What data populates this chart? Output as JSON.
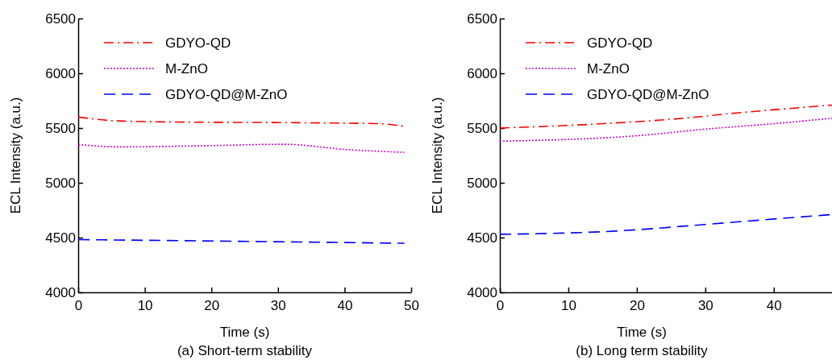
{
  "chart_data": [
    {
      "type": "line",
      "title": "(a) Short-term stability",
      "xlabel": "Time (s)",
      "ylabel": "ECL Intensity (a.u.)",
      "xlim": [
        0,
        50
      ],
      "xticks": [
        0,
        10,
        20,
        30,
        40,
        50
      ],
      "ylim": [
        4000,
        6500
      ],
      "yticks": [
        4000,
        4500,
        5000,
        5500,
        6000,
        6500
      ],
      "legend": "top left",
      "grid": false,
      "series": [
        {
          "name": "GDYO-QD",
          "color": "#ff0000",
          "line_style": "dashdot",
          "x": [
            0,
            6,
            15,
            30,
            45,
            49
          ],
          "values": [
            5600,
            5565,
            5555,
            5550,
            5540,
            5515
          ]
        },
        {
          "name": "M-ZnO",
          "color": "#cc00cc",
          "line_style": "dotted",
          "x": [
            0,
            6,
            20,
            31,
            40,
            49
          ],
          "values": [
            5350,
            5328,
            5340,
            5352,
            5305,
            5278
          ]
        },
        {
          "name": "GDYO-QD@M-ZnO",
          "color": "#0000ff",
          "line_style": "dashed",
          "x": [
            0,
            15,
            30,
            49
          ],
          "values": [
            4482,
            4472,
            4462,
            4448
          ]
        }
      ]
    },
    {
      "type": "line",
      "title": "(b) Long term stability",
      "xlabel": "Time (s)",
      "ylabel": "ECL Intensity (a.u.)",
      "xlim": [
        0,
        48.5
      ],
      "xticks": [
        0,
        10,
        20,
        30,
        40
      ],
      "ylim": [
        4000,
        6500
      ],
      "yticks": [
        4000,
        4500,
        5000,
        5500,
        6000,
        6500
      ],
      "legend": "top left",
      "grid": false,
      "series": [
        {
          "name": "GDYO-QD",
          "color": "#ff0000",
          "line_style": "dashdot",
          "x": [
            0,
            15,
            25,
            35,
            48.5
          ],
          "values": [
            5500,
            5540,
            5580,
            5640,
            5710
          ]
        },
        {
          "name": "M-ZnO",
          "color": "#cc00cc",
          "line_style": "dotted",
          "x": [
            0,
            20,
            30,
            40,
            48.5
          ],
          "values": [
            5380,
            5430,
            5490,
            5540,
            5590
          ]
        },
        {
          "name": "GDYO-QD@M-ZnO",
          "color": "#0000ff",
          "line_style": "dashed",
          "x": [
            0,
            17,
            30,
            40,
            48.5
          ],
          "values": [
            4530,
            4560,
            4620,
            4670,
            4710
          ]
        }
      ]
    }
  ]
}
